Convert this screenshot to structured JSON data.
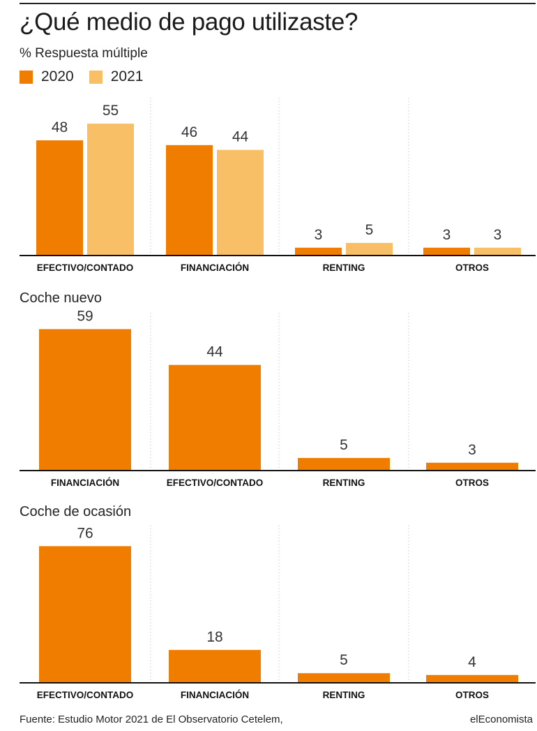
{
  "header": {
    "title": "¿Qué medio de pago utilizaste?",
    "subtitle": "% Respuesta múltiple"
  },
  "legend": [
    {
      "label": "2020",
      "color": "#f07d00"
    },
    {
      "label": "2021",
      "color": "#f8bf66"
    }
  ],
  "colors": {
    "primary": "#f07d00",
    "secondary": "#f8bf66",
    "baseline": "#111111",
    "grid": "#c8c8c8"
  },
  "chart_data": [
    {
      "type": "bar",
      "title": "",
      "categories": [
        "EFECTIVO/CONTADO",
        "FINANCIACIÓN",
        "RENTING",
        "OTROS"
      ],
      "series": [
        {
          "name": "2020",
          "values": [
            48,
            46,
            3,
            3
          ]
        },
        {
          "name": "2021",
          "values": [
            55,
            44,
            5,
            3
          ]
        }
      ],
      "ylim": [
        0,
        60
      ],
      "grid": "vertical-dotted separators",
      "legend": "top-left"
    },
    {
      "type": "bar",
      "title": "Coche nuevo",
      "categories": [
        "FINANCIACIÓN",
        "EFECTIVO/CONTADO",
        "RENTING",
        "OTROS"
      ],
      "series": [
        {
          "values": [
            59,
            44,
            5,
            3
          ]
        }
      ],
      "ylim": [
        0,
        60
      ]
    },
    {
      "type": "bar",
      "title": "Coche de ocasión",
      "categories": [
        "EFECTIVO/CONTADO",
        "FINANCIACIÓN",
        "RENTING",
        "OTROS"
      ],
      "series": [
        {
          "values": [
            76,
            18,
            5,
            4
          ]
        }
      ],
      "ylim": [
        0,
        80
      ]
    }
  ],
  "footer": {
    "source": "Fuente: Estudio Motor 2021 de El Observatorio Cetelem,",
    "brand": "elEconomista"
  }
}
